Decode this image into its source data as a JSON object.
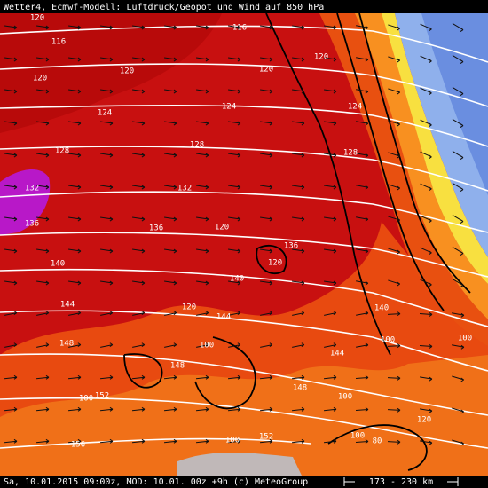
{
  "header": {
    "title": "Wetter4, Ecmwf-Modell: Luftdruck/Geopot und Wind auf 850 hPa"
  },
  "map": {
    "labels": [
      "120",
      "116",
      "116",
      "120",
      "120",
      "120",
      "120",
      "124",
      "124",
      "124",
      "128",
      "128",
      "128",
      "132",
      "132",
      "136",
      "136",
      "120",
      "136",
      "120",
      "140",
      "140",
      "144",
      "120",
      "144",
      "140",
      "100",
      "148",
      "100",
      "100",
      "144",
      "148",
      "100",
      "152",
      "148",
      "100",
      "120",
      "156",
      "100",
      "152",
      "100",
      "80"
    ]
  },
  "footer": {
    "credit": "Sa, 10.01.2015 09:00z, MOD: 10.01. 00z +9h (c) MeteoGroup",
    "scale": "173 - 230 km"
  }
}
